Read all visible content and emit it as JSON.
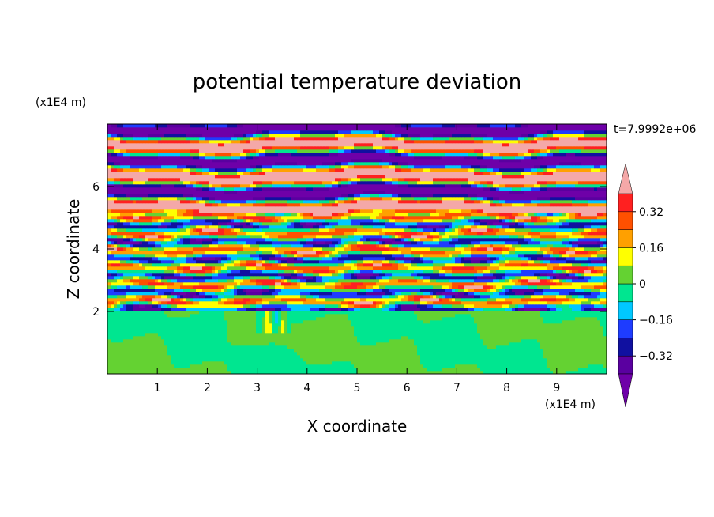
{
  "chart_data": {
    "type": "heatmap",
    "title": "potential temperature deviation",
    "xlabel": "X coordinate",
    "ylabel": "Z coordinate",
    "x_unit": "(x1E4 m)",
    "z_unit": "(x1E4 m)",
    "time_label": "t=7.9992e+06",
    "xlim": [
      0,
      10
    ],
    "zlim": [
      0,
      8
    ],
    "x_ticks": [
      "1",
      "2",
      "3",
      "4",
      "5",
      "6",
      "7",
      "8",
      "9"
    ],
    "z_ticks": [
      "2",
      "4",
      "6"
    ],
    "colorbar": {
      "levels": [
        -0.4,
        -0.32,
        -0.24,
        -0.16,
        -0.08,
        0,
        0.08,
        0.16,
        0.24,
        0.32,
        0.4
      ],
      "colors": [
        "#5a00a0",
        "#1010a0",
        "#1e3cff",
        "#00c8ff",
        "#00e690",
        "#64d232",
        "#ffff00",
        "#ffa000",
        "#ff5000",
        "#ff2020"
      ],
      "under_color": "#6e00a8",
      "over_color": "#f4a8a8",
      "tick_labels": [
        "0.32",
        "0.16",
        "0",
        "−0.16",
        "−0.32"
      ]
    },
    "layers": [
      {
        "z_from": 0,
        "z_to": 2,
        "description_values": [
          -0.02,
          0.02
        ],
        "dominant": [
          "#64d232",
          "#00e690"
        ]
      },
      {
        "z_from": 2,
        "z_to": 5,
        "dominant": "mixed (all levels)"
      },
      {
        "z_from": 5,
        "z_to": 8,
        "dominant": [
          "#f4a8a8",
          "#6e00a8"
        ]
      }
    ]
  }
}
